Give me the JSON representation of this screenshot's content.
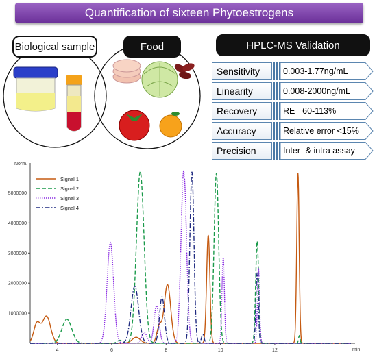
{
  "banner": {
    "title": "Quantification of sixteen Phytoestrogens"
  },
  "headers": {
    "bio": "Biological sample",
    "food": "Food",
    "validation": "HPLC-MS Validation"
  },
  "validation_rows": [
    {
      "label": "Sensitivity",
      "value": "0.003-1.77ng/mL"
    },
    {
      "label": "Linearity",
      "value": "0.008-2000ng/mL"
    },
    {
      "label": "Recovery",
      "value": "RE= 60-113%"
    },
    {
      "label": "Accuracy",
      "value": "Relative error <15%"
    },
    {
      "label": "Precision",
      "value": "Inter- & intra assay"
    }
  ],
  "chart_data": {
    "type": "line",
    "ylabel": "Norm.",
    "xlabel": "min",
    "xlim": [
      3,
      14.8
    ],
    "ylim": [
      0,
      5900000
    ],
    "x_ticks": [
      4,
      6,
      8,
      10,
      12
    ],
    "y_ticks": [
      1000000,
      2000000,
      3000000,
      4000000,
      5000000
    ],
    "y_tick_labels": [
      "1000000",
      "2000000",
      "3000000",
      "4000000",
      "5000000"
    ],
    "series": [
      {
        "name": "Signal 1",
        "color": "#c55a11",
        "dash": "solid",
        "peaks": [
          [
            3.25,
            650000,
            0.12
          ],
          [
            3.6,
            900000,
            0.15
          ],
          [
            6.9,
            200000,
            0.15
          ],
          [
            7.75,
            550000,
            0.09
          ],
          [
            8.05,
            1950000,
            0.12
          ],
          [
            9.55,
            3600000,
            0.06
          ],
          [
            12.85,
            5650000,
            0.045
          ]
        ]
      },
      {
        "name": "Signal 2",
        "color": "#1a9a4a",
        "dash": "dashed",
        "peaks": [
          [
            4.35,
            800000,
            0.18
          ],
          [
            6.3,
            100000,
            0.1
          ],
          [
            7.05,
            5700000,
            0.14
          ],
          [
            9.85,
            5650000,
            0.085
          ],
          [
            11.35,
            3400000,
            0.055
          ],
          [
            12.9,
            250000,
            0.03
          ]
        ]
      },
      {
        "name": "Signal 3",
        "color": "#8a2be2",
        "dash": "dotted",
        "peaks": [
          [
            5.95,
            3350000,
            0.12
          ],
          [
            7.2,
            350000,
            0.1
          ],
          [
            7.65,
            1250000,
            0.09
          ],
          [
            8.65,
            5750000,
            0.1
          ],
          [
            10.1,
            2850000,
            0.045
          ],
          [
            11.4,
            2500000,
            0.04
          ]
        ]
      },
      {
        "name": "Signal 4",
        "color": "#1f2a80",
        "dash": "dashdot",
        "peaks": [
          [
            6.85,
            1900000,
            0.14
          ],
          [
            7.85,
            1550000,
            0.09
          ],
          [
            8.95,
            5700000,
            0.075
          ],
          [
            9.35,
            300000,
            0.05
          ],
          [
            11.35,
            2350000,
            0.045
          ]
        ]
      }
    ]
  }
}
